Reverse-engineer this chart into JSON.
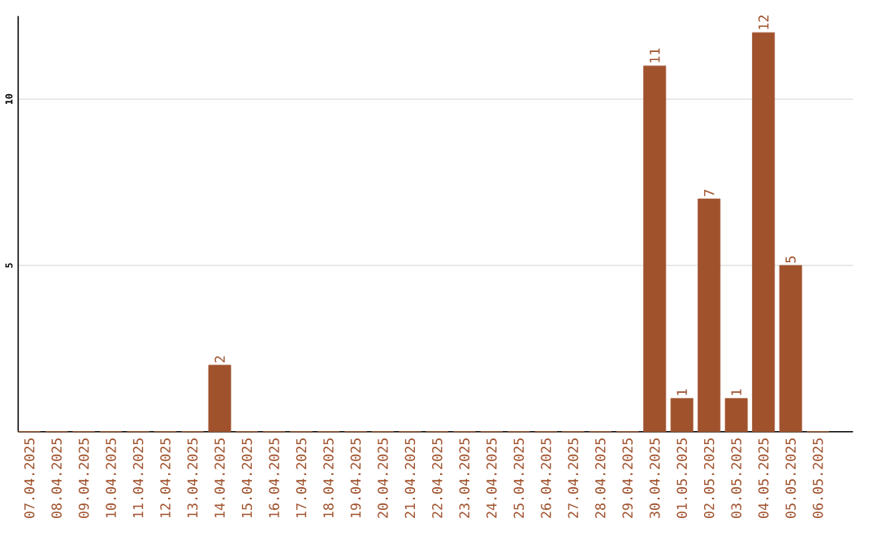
{
  "chart_data": {
    "type": "bar",
    "categories": [
      "07.04.2025",
      "08.04.2025",
      "09.04.2025",
      "10.04.2025",
      "11.04.2025",
      "12.04.2025",
      "13.04.2025",
      "14.04.2025",
      "15.04.2025",
      "16.04.2025",
      "17.04.2025",
      "18.04.2025",
      "19.04.2025",
      "20.04.2025",
      "21.04.2025",
      "22.04.2025",
      "23.04.2025",
      "24.04.2025",
      "25.04.2025",
      "26.04.2025",
      "27.04.2025",
      "28.04.2025",
      "29.04.2025",
      "30.04.2025",
      "01.05.2025",
      "02.05.2025",
      "03.05.2025",
      "04.05.2025",
      "05.05.2025",
      "06.05.2025"
    ],
    "values": [
      0,
      0,
      0,
      0,
      0,
      0,
      0,
      2,
      0,
      0,
      0,
      0,
      0,
      0,
      0,
      0,
      0,
      0,
      0,
      0,
      0,
      0,
      0,
      11,
      1,
      7,
      1,
      12,
      5,
      0
    ],
    "value_labels": [
      null,
      null,
      null,
      null,
      null,
      null,
      null,
      "2",
      null,
      null,
      null,
      null,
      null,
      null,
      null,
      null,
      null,
      null,
      null,
      null,
      null,
      null,
      null,
      "11",
      "1",
      "7",
      "1",
      "12",
      "5",
      null
    ],
    "color": "#a0522d",
    "ylim": [
      0,
      12.5
    ],
    "yticks": [
      5,
      10
    ],
    "grid": "y"
  }
}
